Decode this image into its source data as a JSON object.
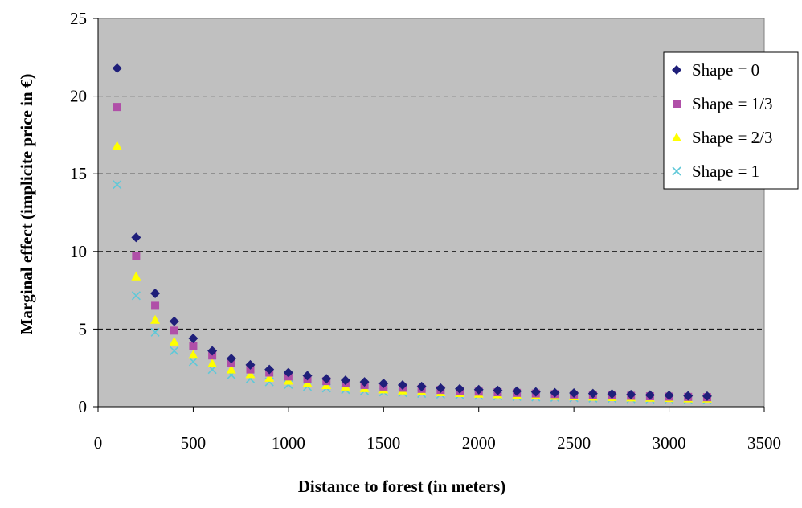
{
  "chart_data": {
    "type": "scatter",
    "title": "",
    "xlabel": "Distance to forest (in meters)",
    "ylabel": "Marginal effect (implicite price in €)",
    "xlim": [
      0,
      3500
    ],
    "ylim": [
      0,
      25
    ],
    "xticks": [
      0,
      500,
      1000,
      1500,
      2000,
      2500,
      3000,
      3500
    ],
    "yticks": [
      0,
      5,
      10,
      15,
      20,
      25
    ],
    "grid": "horizontal dashed",
    "plot_background": "#c0c0c0",
    "legend_position": "right",
    "x": [
      100,
      200,
      300,
      400,
      500,
      600,
      700,
      800,
      900,
      1000,
      1100,
      1200,
      1300,
      1400,
      1500,
      1600,
      1700,
      1800,
      1900,
      2000,
      2100,
      2200,
      2300,
      2400,
      2500,
      2600,
      2700,
      2800,
      2900,
      3000,
      3100,
      3200
    ],
    "series": [
      {
        "name": "Shape = 0",
        "marker": "diamond",
        "color": "#1f1f7a",
        "values": [
          21.8,
          10.9,
          7.3,
          5.5,
          4.4,
          3.6,
          3.1,
          2.7,
          2.4,
          2.2,
          2.0,
          1.8,
          1.7,
          1.6,
          1.5,
          1.4,
          1.3,
          1.2,
          1.15,
          1.1,
          1.05,
          1.0,
          0.95,
          0.9,
          0.88,
          0.85,
          0.82,
          0.78,
          0.75,
          0.73,
          0.7,
          0.68
        ]
      },
      {
        "name": "Shape = 1/3",
        "marker": "square",
        "color": "#b04fa8",
        "values": [
          19.3,
          9.7,
          6.5,
          4.9,
          3.9,
          3.3,
          2.8,
          2.4,
          2.2,
          1.95,
          1.8,
          1.65,
          1.5,
          1.4,
          1.3,
          1.22,
          1.15,
          1.08,
          1.02,
          0.97,
          0.93,
          0.89,
          0.85,
          0.81,
          0.78,
          0.75,
          0.72,
          0.7,
          0.67,
          0.65,
          0.63,
          0.61
        ]
      },
      {
        "name": "Shape = 2/3",
        "marker": "triangle",
        "color": "#ffff00",
        "values": [
          16.8,
          8.4,
          5.6,
          4.2,
          3.35,
          2.8,
          2.4,
          2.1,
          1.87,
          1.68,
          1.53,
          1.4,
          1.3,
          1.2,
          1.12,
          1.05,
          0.99,
          0.93,
          0.88,
          0.84,
          0.8,
          0.76,
          0.73,
          0.7,
          0.67,
          0.65,
          0.62,
          0.6,
          0.58,
          0.56,
          0.54,
          0.53
        ]
      },
      {
        "name": "Shape = 1",
        "marker": "x",
        "color": "#5fc8d8",
        "values": [
          14.3,
          7.15,
          4.8,
          3.6,
          2.9,
          2.4,
          2.05,
          1.8,
          1.6,
          1.43,
          1.3,
          1.2,
          1.1,
          1.02,
          0.95,
          0.9,
          0.85,
          0.8,
          0.76,
          0.72,
          0.68,
          0.65,
          0.62,
          0.6,
          0.57,
          0.55,
          0.53,
          0.51,
          0.49,
          0.48,
          0.46,
          0.45
        ]
      }
    ]
  }
}
